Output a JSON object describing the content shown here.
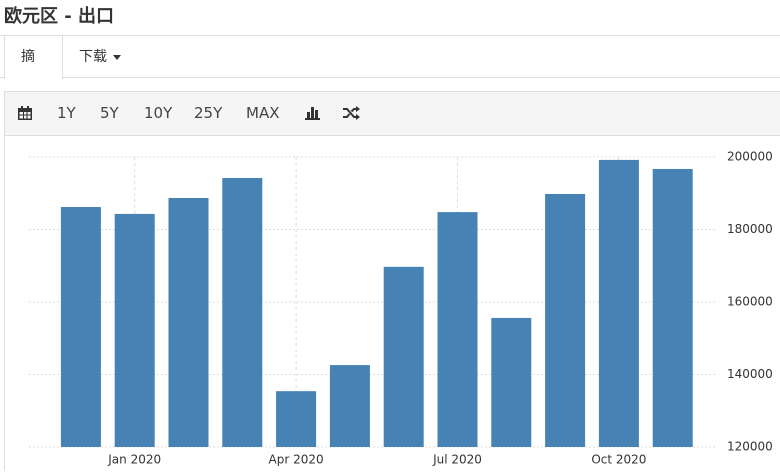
{
  "header": {
    "title": "欧元区 - 出口"
  },
  "tabs": [
    "摘要",
    "下载"
  ],
  "toolbar": [
    "1Y",
    "5Y",
    "10Y",
    "25Y",
    "MAX"
  ],
  "chart_data": {
    "type": "bar",
    "categories": [
      null,
      "Jan 2020",
      null,
      null,
      "Apr 2020",
      null,
      null,
      "Jul 2020",
      null,
      null,
      "Oct 2020",
      null
    ],
    "values": [
      186200,
      184300,
      188700,
      194200,
      135400,
      142600,
      169700,
      184800,
      155600,
      189800,
      199200,
      196700
    ],
    "color": "#4682b4",
    "ylim": [
      120000,
      200000
    ],
    "yticks": [
      120000,
      140000,
      160000,
      180000,
      200000
    ],
    "grid": true
  }
}
